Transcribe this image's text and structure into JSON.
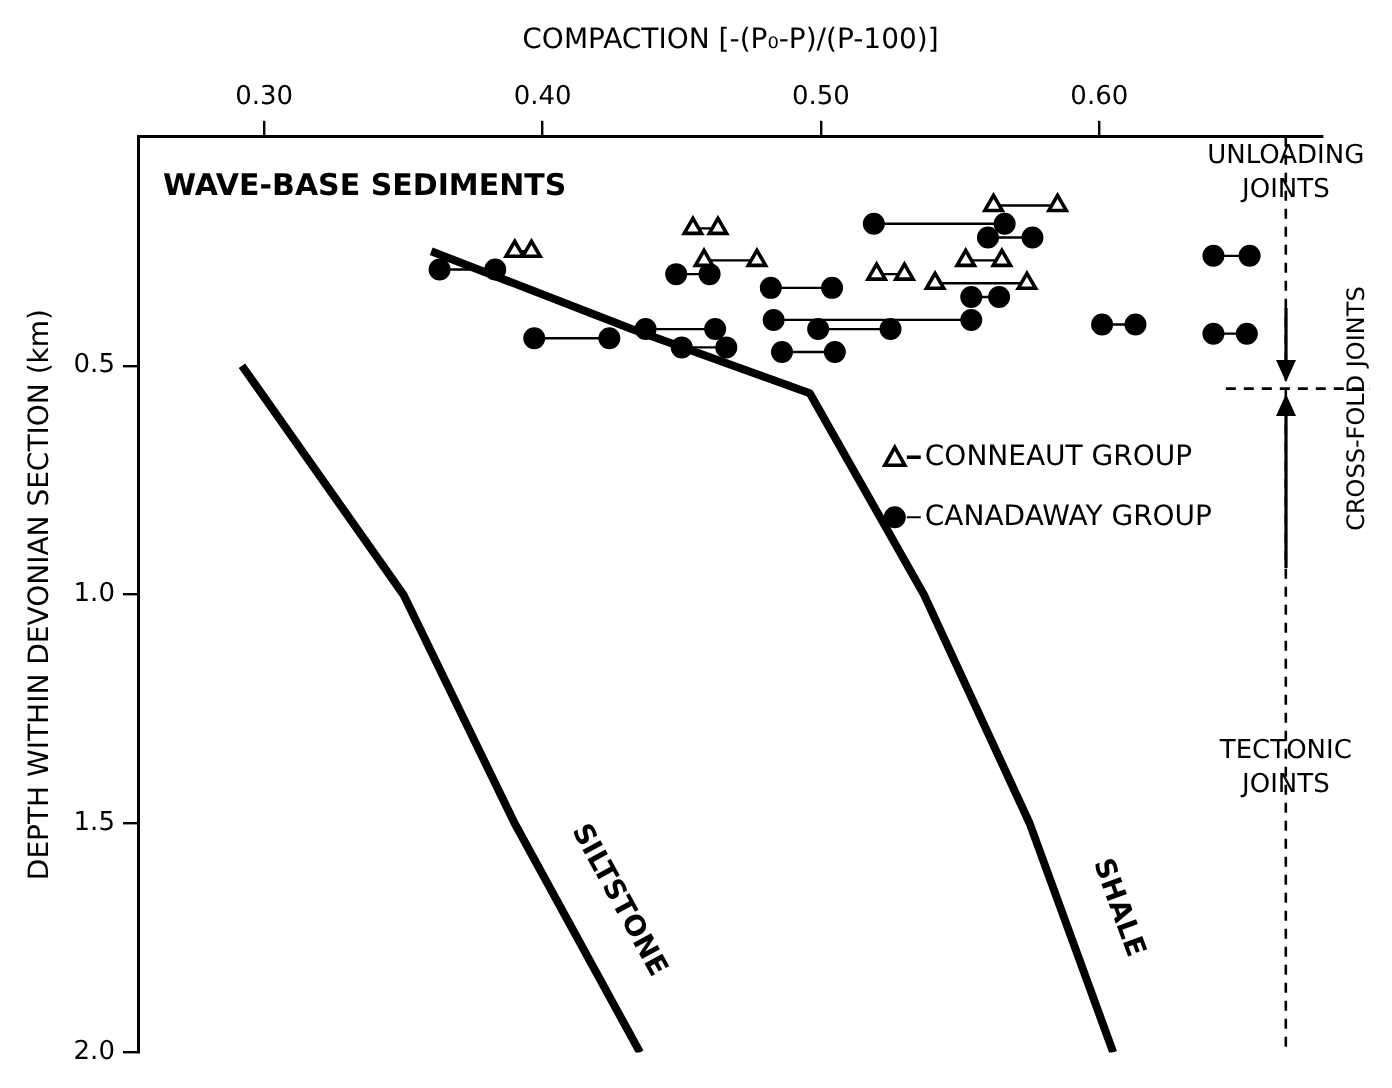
{
  "chart_data": {
    "type": "line",
    "xlabel": "COMPACTION [-(P₀-P)/(P-100)]",
    "ylabel": "DEPTH WITHIN DEVONIAN SECTION (km)",
    "xlim": [
      0.255,
      0.68
    ],
    "xticks": [
      {
        "value": 0.3,
        "label": "0.30"
      },
      {
        "value": 0.4,
        "label": "0.40"
      },
      {
        "value": 0.5,
        "label": "0.50"
      },
      {
        "value": 0.6,
        "label": "0.60"
      }
    ],
    "ylim": [
      2.0,
      0
    ],
    "yticks": [
      {
        "value": 0.5,
        "label": "0.5"
      },
      {
        "value": 1,
        "label": "1.0"
      },
      {
        "value": 1.5,
        "label": "1.5"
      },
      {
        "value": 2,
        "label": "2.0"
      }
    ],
    "grid": false,
    "legend": "right",
    "series": [
      {
        "name": "SILTSTONE",
        "marker": "none",
        "color": "#000000",
        "x": [
          0.292,
          0.35,
          0.39,
          0.435
        ],
        "values": [
          0.5,
          1.0,
          1.5,
          2.0
        ]
      },
      {
        "name": "SHALE",
        "marker": "none",
        "color": "#000000",
        "x": [
          0.36,
          0.432,
          0.496,
          0.537,
          0.575,
          0.605
        ],
        "values": [
          0.25,
          0.42,
          0.56,
          1.0,
          1.5,
          2.0
        ]
      },
      {
        "name": "CONNEAUT GROUP",
        "marker": "triangle",
        "color": "#000000",
        "x": [
          0.39,
          0.396,
          null,
          0.454,
          0.463,
          null,
          0.458,
          0.477,
          null,
          0.52,
          0.53,
          null,
          0.541,
          0.574,
          null,
          0.562,
          0.585,
          null,
          0.552,
          0.565
        ],
        "values": [
          0.25,
          0.25,
          null,
          0.2,
          0.2,
          null,
          0.27,
          0.27,
          null,
          0.3,
          0.3,
          null,
          0.32,
          0.32,
          null,
          0.15,
          0.15,
          null,
          0.27,
          0.27
        ]
      },
      {
        "name": "CANADAWAY GROUP",
        "marker": "circle",
        "color": "#000000",
        "x": [
          0.363,
          0.383,
          null,
          0.448,
          0.46,
          null,
          0.482,
          0.504,
          null,
          0.519,
          0.566,
          null,
          0.483,
          0.554,
          null,
          0.499,
          0.525,
          null,
          0.486,
          0.505,
          null,
          0.397,
          0.424,
          null,
          0.437,
          0.462,
          null,
          0.45,
          0.466,
          null,
          0.56,
          0.576,
          null,
          0.554,
          0.564,
          null,
          0.641,
          0.654,
          null,
          0.601,
          0.613,
          null,
          0.641,
          0.653
        ],
        "values": [
          0.29,
          0.29,
          null,
          0.3,
          0.3,
          null,
          0.33,
          0.33,
          null,
          0.19,
          0.19,
          null,
          0.4,
          0.4,
          null,
          0.42,
          0.42,
          null,
          0.47,
          0.47,
          null,
          0.44,
          0.44,
          null,
          0.42,
          0.42,
          null,
          0.46,
          0.46,
          null,
          0.22,
          0.22,
          null,
          0.35,
          0.35,
          null,
          0.26,
          0.26,
          null,
          0.41,
          0.41,
          null,
          0.43,
          0.43
        ]
      }
    ],
    "ref_lines": [
      {
        "axis": "x",
        "value": 0.667,
        "line_style": "dashed"
      },
      {
        "axis": "y",
        "value": 0.55,
        "line_style": "dashed"
      }
    ],
    "annotations": [
      "WAVE-BASE SEDIMENTS",
      "CROSS-FOLD JOINTS",
      {
        "text": "UNLOADING JOINTS",
        "x": 0.667,
        "y": 0.08
      },
      {
        "text": "TECTONIC JOINTS",
        "x": 0.667,
        "y": 1.38
      }
    ]
  }
}
